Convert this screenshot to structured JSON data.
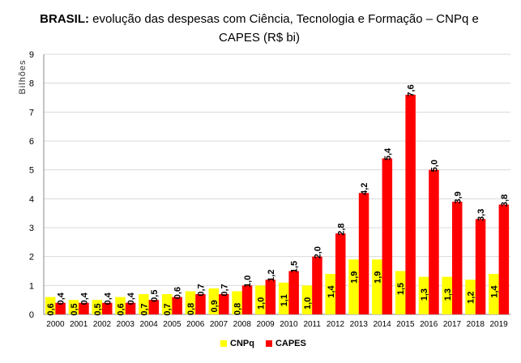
{
  "title_bold": "BRASIL:",
  "title_rest": " evolução das despesas com Ciência, Tecnologia e Formação – CNPq e CAPES (R$ bi)",
  "colors": {
    "cnpq": "#FFFF00",
    "capes": "#FF0000",
    "grid": "#d9d9d9",
    "axis": "#888888"
  },
  "chart_data": {
    "type": "bar",
    "title": "BRASIL: evolução das despesas com Ciência, Tecnologia e Formação – CNPq e CAPES (R$ bi)",
    "xlabel": "",
    "ylabel": "Bilhões",
    "ylim": [
      0,
      9
    ],
    "yticks": [
      0,
      1,
      2,
      3,
      4,
      5,
      6,
      7,
      8,
      9
    ],
    "grid": true,
    "legend_position": "bottom",
    "categories": [
      "2000",
      "2001",
      "2002",
      "2003",
      "2004",
      "2005",
      "2006",
      "2007",
      "2008",
      "2009",
      "2010",
      "2011",
      "2012",
      "2013",
      "2014",
      "2015",
      "2016",
      "2017",
      "2018",
      "2019"
    ],
    "series": [
      {
        "name": "CNPq",
        "values": [
          0.6,
          0.5,
          0.5,
          0.6,
          0.7,
          0.7,
          0.8,
          0.9,
          0.8,
          1.0,
          1.1,
          1.0,
          1.4,
          1.9,
          1.9,
          1.5,
          1.3,
          1.3,
          1.2,
          1.4
        ],
        "labels": [
          "0,6",
          "0,5",
          "0,5",
          "0,6",
          "0,7",
          "0,7",
          "0,8",
          "0,9",
          "0,8",
          "1,0",
          "1,1",
          "1,0",
          "1,4",
          "1,9",
          "1,9",
          "1,5",
          "1,3",
          "1,3",
          "1,2",
          "1,4"
        ]
      },
      {
        "name": "CAPES",
        "values": [
          0.4,
          0.4,
          0.4,
          0.4,
          0.5,
          0.6,
          0.7,
          0.7,
          1.0,
          1.2,
          1.5,
          2.0,
          2.8,
          4.2,
          5.4,
          7.6,
          5.0,
          3.9,
          3.3,
          3.8
        ],
        "labels": [
          "0,4",
          "0,4",
          "0,4",
          "0,4",
          "0,5",
          "0,6",
          "0,7",
          "0,7",
          "1,0",
          "1,2",
          "1,5",
          "2,0",
          "2,8",
          "4,2",
          "5,4",
          "7,6",
          "5,0",
          "3,9",
          "3,3",
          "3,8"
        ]
      }
    ]
  }
}
